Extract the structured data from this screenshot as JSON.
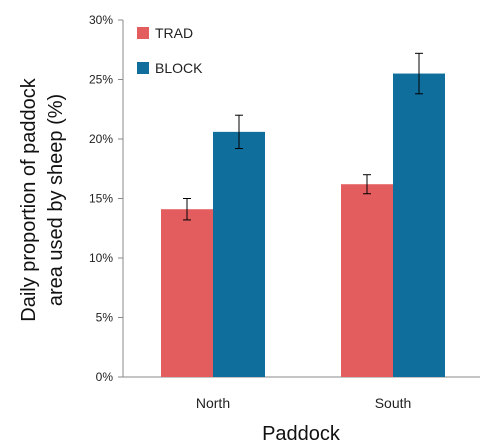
{
  "chart_data": {
    "type": "bar",
    "categories": [
      "North",
      "South"
    ],
    "series": [
      {
        "name": "TRAD",
        "color": "#e35d5f",
        "values": [
          14.1,
          16.2
        ],
        "errors": [
          0.9,
          0.8
        ]
      },
      {
        "name": "BLOCK",
        "color": "#0f6e9c",
        "values": [
          20.6,
          25.5
        ],
        "errors": [
          1.4,
          1.7
        ]
      }
    ],
    "title": "",
    "xlabel": "Paddock",
    "ylabel_line1": "Daily proportion of paddock",
    "ylabel_line2": "area used by sheep (%)",
    "ylim": [
      0,
      30
    ],
    "yticks": [
      "0%",
      "5%",
      "10%",
      "15%",
      "20%",
      "25%",
      "30%"
    ],
    "grid": false,
    "legend_position": "top-left"
  }
}
